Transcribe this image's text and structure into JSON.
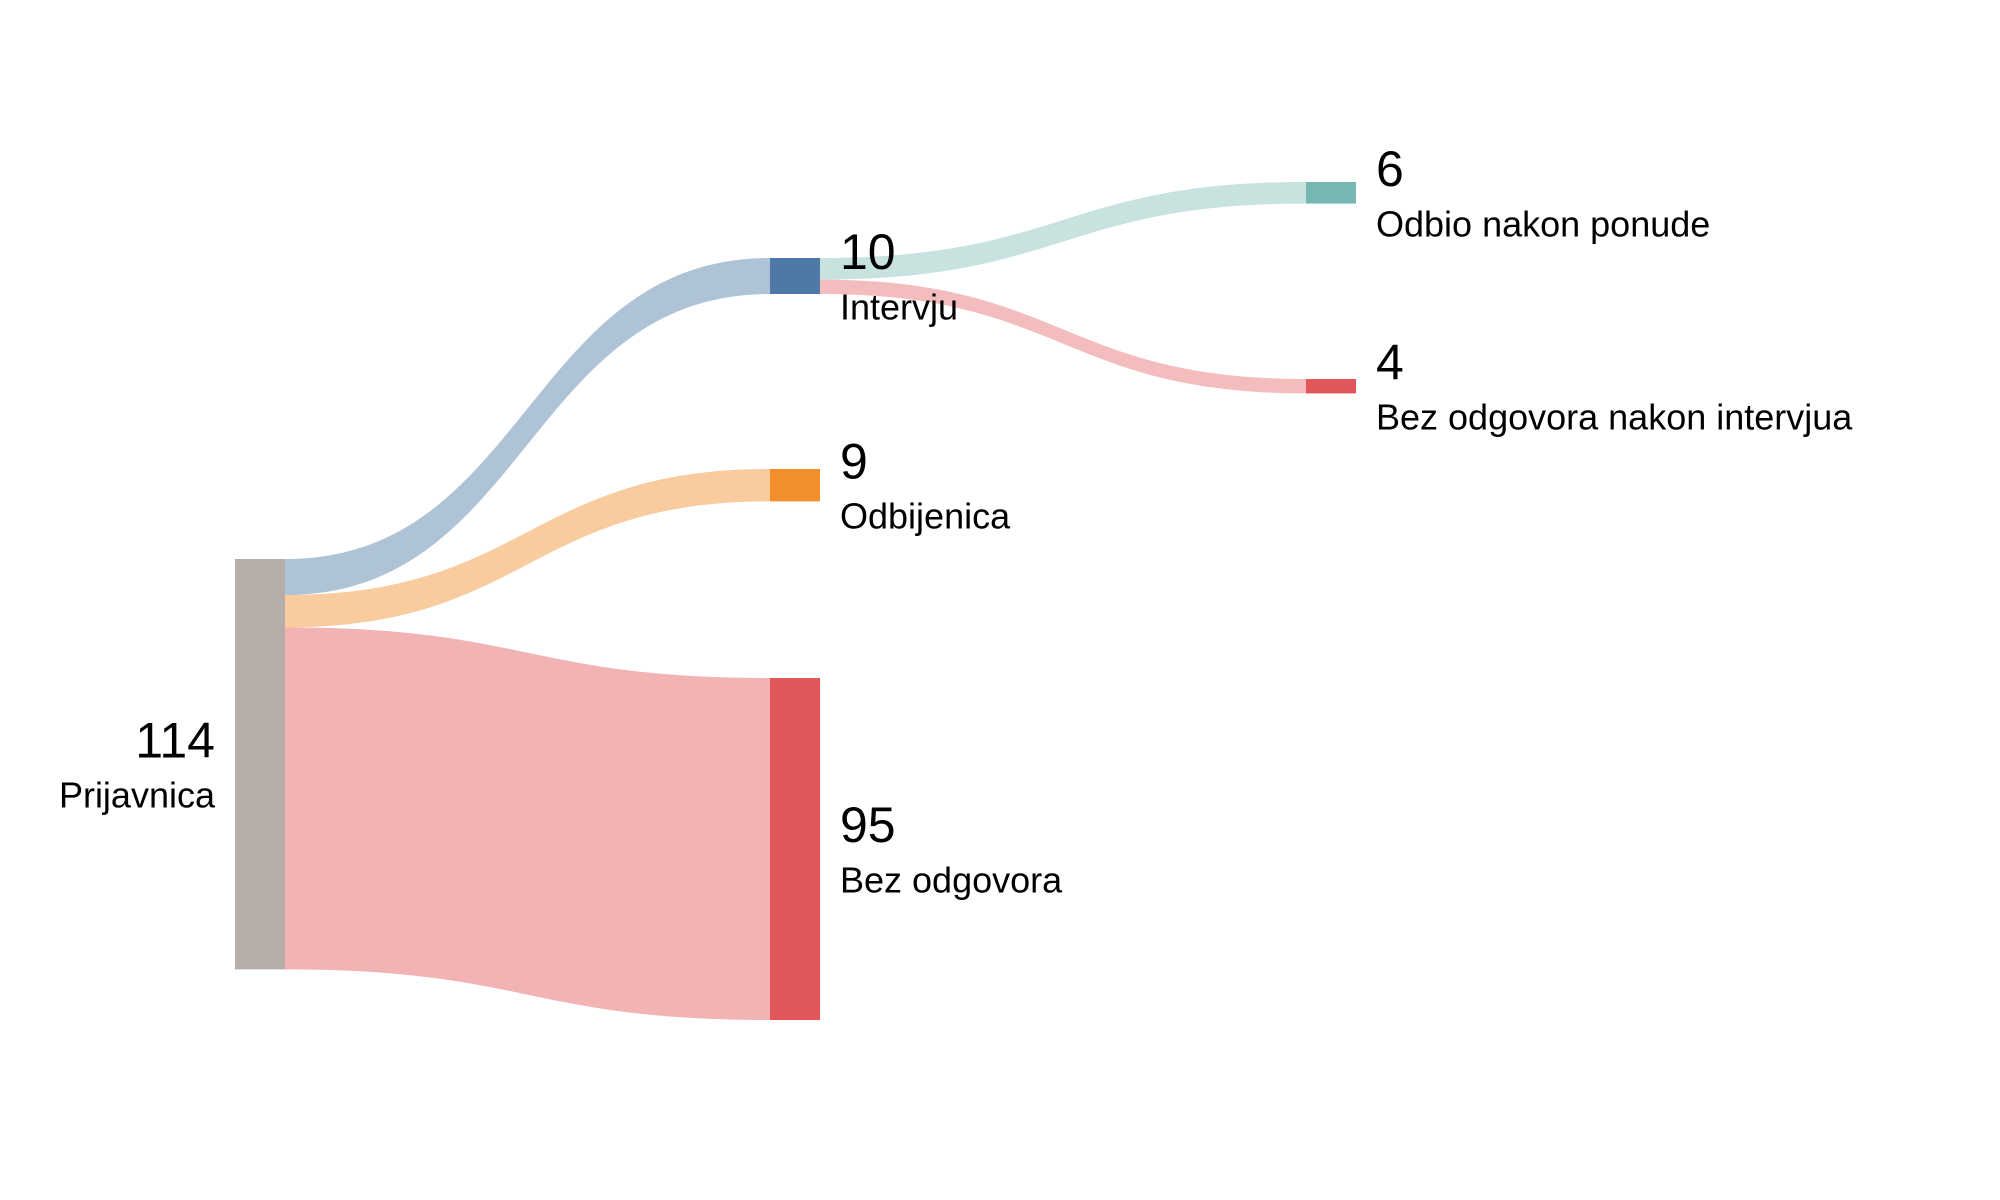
{
  "chart_data": {
    "type": "sankey",
    "nodes": [
      {
        "name": "Prijavnica",
        "value": 114,
        "color": "#b8aea9"
      },
      {
        "name": "Intervju",
        "value": 10,
        "color": "#4e79a7"
      },
      {
        "name": "Odbijenica",
        "value": 9,
        "color": "#f28e2b"
      },
      {
        "name": "Bez odgovora",
        "value": 95,
        "color": "#e15759"
      },
      {
        "name": "Odbio nakon ponude",
        "value": 6,
        "color": "#76b7b2"
      },
      {
        "name": "Bez odgovora nakon intervjua",
        "value": 4,
        "color": "#e15759"
      }
    ],
    "links": [
      {
        "source": 0,
        "target": 1,
        "value": 10
      },
      {
        "source": 0,
        "target": 2,
        "value": 9
      },
      {
        "source": 0,
        "target": 3,
        "value": 95
      },
      {
        "source": 1,
        "target": 4,
        "value": 6
      },
      {
        "source": 1,
        "target": 5,
        "value": 4
      }
    ]
  }
}
